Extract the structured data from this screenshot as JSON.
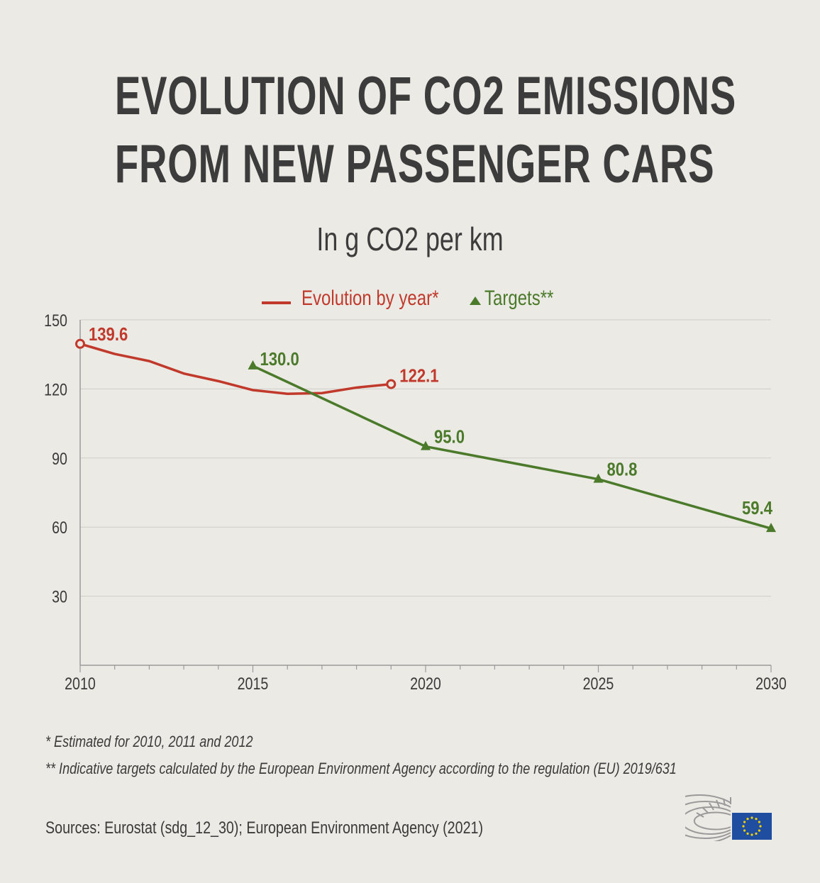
{
  "title_lines": [
    "EVOLUTION OF CO2 EMISSIONS",
    "FROM NEW PASSENGER CARS"
  ],
  "subtitle": "In g CO2 per km",
  "legend": {
    "evolution": "Evolution by year*",
    "targets": "Targets**"
  },
  "footnotes": [
    "* Estimated for 2010, 2011 and 2012",
    "** Indicative targets calculated by the European Environment Agency according to the regulation (EU) 2019/631"
  ],
  "sources": "Sources: Eurostat (sdg_12_30); European Environment Agency (2021)",
  "colors": {
    "evolution": "#c0392b",
    "targets": "#4a7a2a",
    "background": "#eceae5",
    "grid": "#cfcdc8",
    "eu_flag": "#1f4ea1",
    "eu_stars": "#f5d100"
  },
  "chart_data": {
    "type": "line",
    "title": "EVOLUTION OF CO2 EMISSIONS FROM NEW PASSENGER CARS",
    "subtitle": "In g CO2 per km",
    "xlim": [
      2010,
      2030
    ],
    "ylim": [
      0,
      150
    ],
    "x_ticks": [
      2010,
      2015,
      2020,
      2025,
      2030
    ],
    "y_ticks": [
      30,
      60,
      90,
      120,
      150
    ],
    "grid": "horizontal",
    "legend_position": "top-center",
    "series": [
      {
        "name": "Evolution by year*",
        "color": "#c0392b",
        "marker": "open-circle-endpoints",
        "x": [
          2010,
          2011,
          2012,
          2013,
          2014,
          2015,
          2016,
          2017,
          2018,
          2019
        ],
        "y": [
          139.6,
          135.2,
          132.1,
          126.7,
          123.4,
          119.5,
          117.9,
          118.2,
          120.6,
          122.1
        ],
        "labels": [
          {
            "x": 2010,
            "text": "139.6"
          },
          {
            "x": 2019,
            "text": "122.1"
          }
        ]
      },
      {
        "name": "Targets**",
        "color": "#4a7a2a",
        "marker": "triangle",
        "x": [
          2015,
          2020,
          2025,
          2030
        ],
        "y": [
          130.0,
          95.0,
          80.8,
          59.4
        ],
        "labels": [
          {
            "x": 2015,
            "text": "130.0"
          },
          {
            "x": 2020,
            "text": "95.0"
          },
          {
            "x": 2025,
            "text": "80.8"
          },
          {
            "x": 2030,
            "text": "59.4"
          }
        ]
      }
    ]
  }
}
